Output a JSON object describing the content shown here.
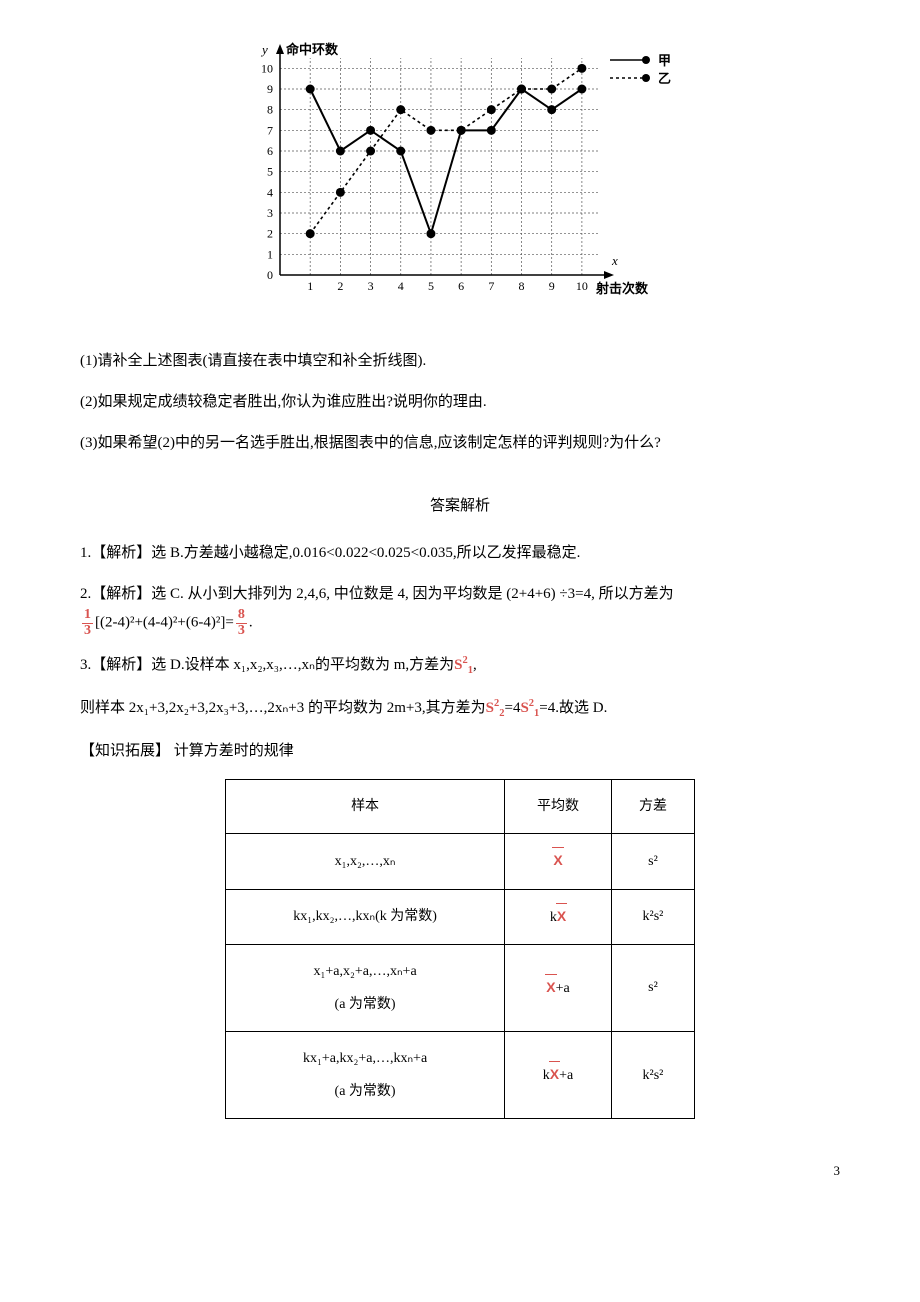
{
  "chart": {
    "type": "line",
    "title_y": "命中环数",
    "title_x": "射击次数",
    "axis_label_y": "y",
    "axis_label_x": "x",
    "x_ticks": [
      1,
      2,
      3,
      4,
      5,
      6,
      7,
      8,
      9,
      10
    ],
    "y_ticks": [
      0,
      1,
      2,
      3,
      4,
      5,
      6,
      7,
      8,
      9,
      10
    ],
    "xlim": [
      0,
      10.6
    ],
    "ylim": [
      0,
      10.5
    ],
    "grid_color": "#555555",
    "grid_dash": "2 2",
    "axis_color": "#000000",
    "background_color": "#ffffff",
    "tick_fontsize": 12,
    "label_fontsize": 13,
    "legend": {
      "items": [
        {
          "label": "甲",
          "dash": "none",
          "marker": "circle"
        },
        {
          "label": "乙",
          "dash": "3 3",
          "marker": "circle"
        }
      ],
      "position": "top-right",
      "fontsize": 13
    },
    "series": [
      {
        "name": "甲",
        "color": "#000000",
        "dash": "none",
        "line_width": 2,
        "marker": "circle",
        "marker_size": 4.5,
        "x": [
          1,
          2,
          3,
          4,
          5,
          6,
          7,
          8,
          9,
          10
        ],
        "y": [
          9,
          6,
          7,
          6,
          2,
          7,
          7,
          9,
          8,
          9
        ]
      },
      {
        "name": "乙",
        "color": "#000000",
        "dash": "3 3",
        "line_width": 1.6,
        "marker": "circle",
        "marker_size": 4.5,
        "x": [
          1,
          2,
          3,
          4,
          5,
          6,
          7,
          8,
          9,
          10
        ],
        "y": [
          2,
          4,
          6,
          8,
          7,
          7,
          8,
          9,
          9,
          10
        ]
      }
    ]
  },
  "questions": {
    "q1": "(1)请补全上述图表(请直接在表中填空和补全折线图).",
    "q2": "(2)如果规定成绩较稳定者胜出,你认为谁应胜出?说明你的理由.",
    "q3": "(3)如果希望(2)中的另一名选手胜出,根据图表中的信息,应该制定怎样的评判规则?为什么?"
  },
  "answers": {
    "title": "答案解析",
    "a1": "1.【解析】选 B.方差越小越稳定,0.016<0.022<0.025<0.035,所以乙发挥最稳定.",
    "a2_prefix": "2.【解析】选 C. 从小到大排列为 2,4,6, 中位数是 4, 因为平均数是 (2+4+6) ÷3=4, 所以方差为",
    "a2_frac1_num": "1",
    "a2_frac1_den": "3",
    "a2_mid": "[(2-4)²+(4-4)²+(6-4)²]=",
    "a2_frac2_num": "8",
    "a2_frac2_den": "3",
    "a2_tail": ".",
    "a3_line1_pre": "3.【解析】选 D.设样本 x₁,x₂,x₃,…,xₙ的平均数为 m,方差为",
    "a3_s1": "S",
    "a3_s1_sup": "2",
    "a3_s1_sub": "1",
    "a3_line1_tail": ",",
    "a3_line2_pre": "则样本 2x₁+3,2x₂+3,2x₃+3,…,2xₙ+3 的平均数为 2m+3,其方差为",
    "a3_s2": "S",
    "a3_s2_sup": "2",
    "a3_s2_sub": "2",
    "a3_eq": "=4",
    "a3_s1b": "S",
    "a3_line2_tail": "=4.故选 D.",
    "extend_title": "【知识拓展】 计算方差时的规律"
  },
  "table": {
    "headers": [
      "样本",
      "平均数",
      "方差"
    ],
    "rows": [
      {
        "sample": "x₁,x₂,…,xₙ",
        "mean_prefix": "",
        "mean_suffix": "",
        "var": "s²"
      },
      {
        "sample": "kx₁,kx₂,…,kxₙ(k 为常数)",
        "mean_prefix": "k",
        "mean_suffix": "",
        "var": "k²s²"
      },
      {
        "sample_line1": "x₁+a,x₂+a,…,xₙ+a",
        "sample_line2": "(a 为常数)",
        "mean_prefix": "",
        "mean_suffix": "+a",
        "var": "s²"
      },
      {
        "sample_line1": "kx₁+a,kx₂+a,…,kxₙ+a",
        "sample_line2": "(a 为常数)",
        "mean_prefix": "k",
        "mean_suffix": "+a",
        "var": "k²s²"
      }
    ]
  },
  "page_number": "3"
}
